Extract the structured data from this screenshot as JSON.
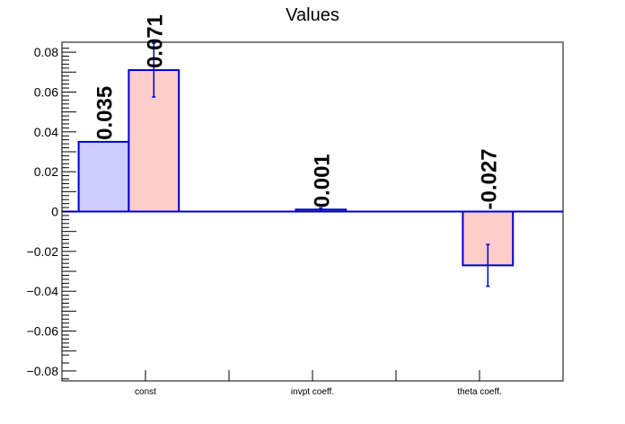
{
  "chart_data": {
    "type": "bar",
    "title": "Values",
    "xlabel": "",
    "ylabel": "",
    "ylim": [
      -0.085,
      0.085
    ],
    "yticks": [
      0.08,
      0.06,
      0.04,
      0.02,
      0,
      -0.02,
      -0.04,
      -0.06,
      -0.08
    ],
    "ytick_labels": [
      "0.08",
      "0.06",
      "0.04",
      "0.02",
      "0",
      "−0.02",
      "−0.04",
      "−0.06",
      "−0.08"
    ],
    "categories": [
      "const",
      "invpt coeff.",
      "theta coeff."
    ],
    "grid": false,
    "series": [
      {
        "color": "#ccccff",
        "values": [
          0.035,
          null,
          null
        ],
        "labels": [
          "0.035",
          "",
          ""
        ]
      },
      {
        "color": "#ffcccc",
        "values": [
          0.071,
          0.001,
          -0.027
        ],
        "errors": [
          0.0135,
          0.0008,
          0.0105
        ],
        "labels": [
          "0.071",
          "0.001",
          "-0.027"
        ]
      }
    ],
    "outline_color": "#0000cc"
  }
}
